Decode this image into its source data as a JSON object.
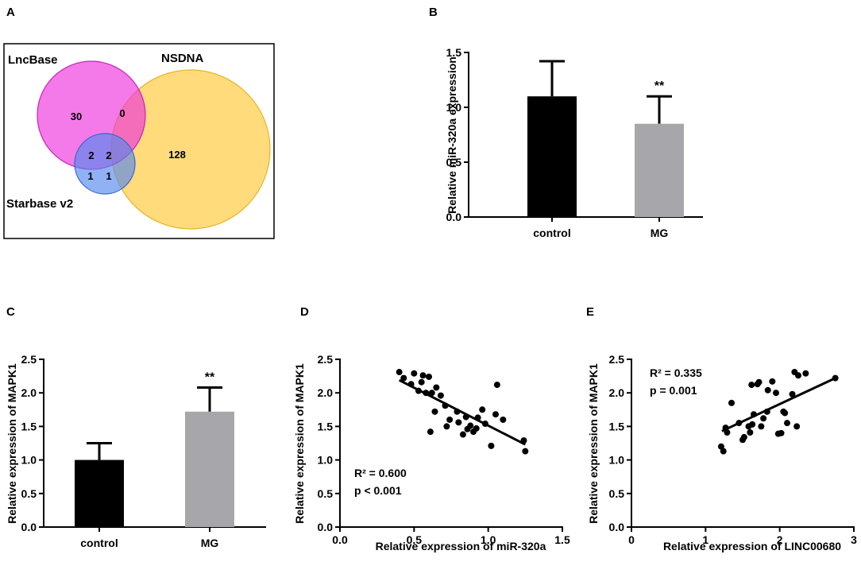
{
  "panels": {
    "a": {
      "letter": "A",
      "venn": {
        "sets": [
          {
            "name": "LncBase",
            "color": "#ee33dd"
          },
          {
            "name": "NSDNA",
            "color": "#ffcc44"
          },
          {
            "name": "Starbase v2",
            "color": "#5588ee"
          }
        ],
        "regions": {
          "lncbase_only": "30",
          "lncbase_nsdna": "0",
          "nsdna_only": "128",
          "lncbase_starbase": "2",
          "all_three": "2",
          "starbase_only": "1",
          "starbase_nsdna": "1"
        }
      }
    },
    "b": {
      "letter": "B"
    },
    "c": {
      "letter": "C"
    },
    "d": {
      "letter": "D"
    },
    "e": {
      "letter": "E"
    }
  },
  "chart_data": [
    {
      "id": "B",
      "type": "bar",
      "categories": [
        "control",
        "MG"
      ],
      "values": [
        1.1,
        0.85
      ],
      "errors": [
        0.32,
        0.25
      ],
      "colors": [
        "#000000",
        "#a7a7ab"
      ],
      "significance": [
        "",
        "**"
      ],
      "title": "",
      "xlabel": "",
      "ylabel": "Relative miR-320a expression",
      "ylim": [
        0,
        1.5
      ],
      "yticks": [
        "0.0",
        "0.5",
        "1.0",
        "1.5"
      ]
    },
    {
      "id": "C",
      "type": "bar",
      "categories": [
        "control",
        "MG"
      ],
      "values": [
        1.0,
        1.72
      ],
      "errors": [
        0.25,
        0.36
      ],
      "colors": [
        "#000000",
        "#a7a7ab"
      ],
      "significance": [
        "",
        "**"
      ],
      "title": "",
      "xlabel": "",
      "ylabel": "Relative expression of MAPK1",
      "ylim": [
        0,
        2.5
      ],
      "yticks": [
        "0.0",
        "0.5",
        "1.0",
        "1.5",
        "2.0",
        "2.5"
      ]
    },
    {
      "id": "D",
      "type": "scatter",
      "title": "",
      "xlabel": "Relative expression of miR-320a",
      "ylabel": "Relative expression of MAPK1",
      "xlim": [
        0,
        1.5
      ],
      "ylim": [
        0,
        2.5
      ],
      "xticks": [
        "0.0",
        "0.5",
        "1.0",
        "1.5"
      ],
      "yticks": [
        "0.0",
        "0.5",
        "1.0",
        "1.5",
        "2.0",
        "2.5"
      ],
      "points": [
        [
          0.4,
          2.31
        ],
        [
          0.43,
          2.22
        ],
        [
          0.48,
          2.13
        ],
        [
          0.5,
          2.29
        ],
        [
          0.53,
          2.03
        ],
        [
          0.55,
          2.16
        ],
        [
          0.56,
          2.26
        ],
        [
          0.58,
          2.0
        ],
        [
          0.6,
          2.24
        ],
        [
          0.61,
          1.42
        ],
        [
          0.62,
          2.0
        ],
        [
          0.64,
          1.72
        ],
        [
          0.65,
          2.08
        ],
        [
          0.68,
          1.96
        ],
        [
          0.71,
          1.81
        ],
        [
          0.72,
          1.5
        ],
        [
          0.74,
          1.6
        ],
        [
          0.79,
          1.72
        ],
        [
          0.8,
          1.56
        ],
        [
          0.83,
          1.38
        ],
        [
          0.85,
          1.64
        ],
        [
          0.86,
          1.46
        ],
        [
          0.88,
          1.51
        ],
        [
          0.9,
          1.42
        ],
        [
          0.92,
          1.47
        ],
        [
          0.93,
          1.63
        ],
        [
          0.96,
          1.75
        ],
        [
          0.98,
          1.54
        ],
        [
          1.02,
          1.21
        ],
        [
          1.05,
          1.68
        ],
        [
          1.06,
          2.12
        ],
        [
          1.1,
          1.6
        ],
        [
          1.24,
          1.29
        ],
        [
          1.25,
          1.13
        ]
      ],
      "fit": {
        "x": [
          0.4,
          1.25
        ],
        "y": [
          2.19,
          1.23
        ]
      },
      "stats": {
        "r2": "R² = 0.600",
        "p": "p < 0.001"
      }
    },
    {
      "id": "E",
      "type": "scatter",
      "title": "",
      "xlabel": "Relative expression of LINC00680",
      "ylabel": "Relative expression of MAPK1",
      "xlim": [
        0,
        3
      ],
      "ylim": [
        0,
        2.5
      ],
      "xticks": [
        "0",
        "1",
        "2",
        "3"
      ],
      "yticks": [
        "0.0",
        "0.5",
        "1.0",
        "1.5",
        "2.0",
        "2.5"
      ],
      "points": [
        [
          1.21,
          1.2
        ],
        [
          1.24,
          1.13
        ],
        [
          1.27,
          1.48
        ],
        [
          1.29,
          1.41
        ],
        [
          1.35,
          1.85
        ],
        [
          1.45,
          1.55
        ],
        [
          1.5,
          1.3
        ],
        [
          1.52,
          1.34
        ],
        [
          1.58,
          1.5
        ],
        [
          1.6,
          1.41
        ],
        [
          1.62,
          2.12
        ],
        [
          1.63,
          1.53
        ],
        [
          1.65,
          1.68
        ],
        [
          1.7,
          2.13
        ],
        [
          1.72,
          2.16
        ],
        [
          1.75,
          1.5
        ],
        [
          1.78,
          1.62
        ],
        [
          1.83,
          1.72
        ],
        [
          1.84,
          2.04
        ],
        [
          1.9,
          2.17
        ],
        [
          1.95,
          2.0
        ],
        [
          1.98,
          1.39
        ],
        [
          2.02,
          1.4
        ],
        [
          2.05,
          1.72
        ],
        [
          2.07,
          1.7
        ],
        [
          2.1,
          1.55
        ],
        [
          2.17,
          1.98
        ],
        [
          2.2,
          2.31
        ],
        [
          2.23,
          1.5
        ],
        [
          2.25,
          2.26
        ],
        [
          2.35,
          2.29
        ],
        [
          2.75,
          2.22
        ]
      ],
      "fit": {
        "x": [
          1.22,
          2.75
        ],
        "y": [
          1.43,
          2.22
        ]
      },
      "stats": {
        "r2": "R² = 0.335",
        "p": "p = 0.001"
      }
    }
  ]
}
